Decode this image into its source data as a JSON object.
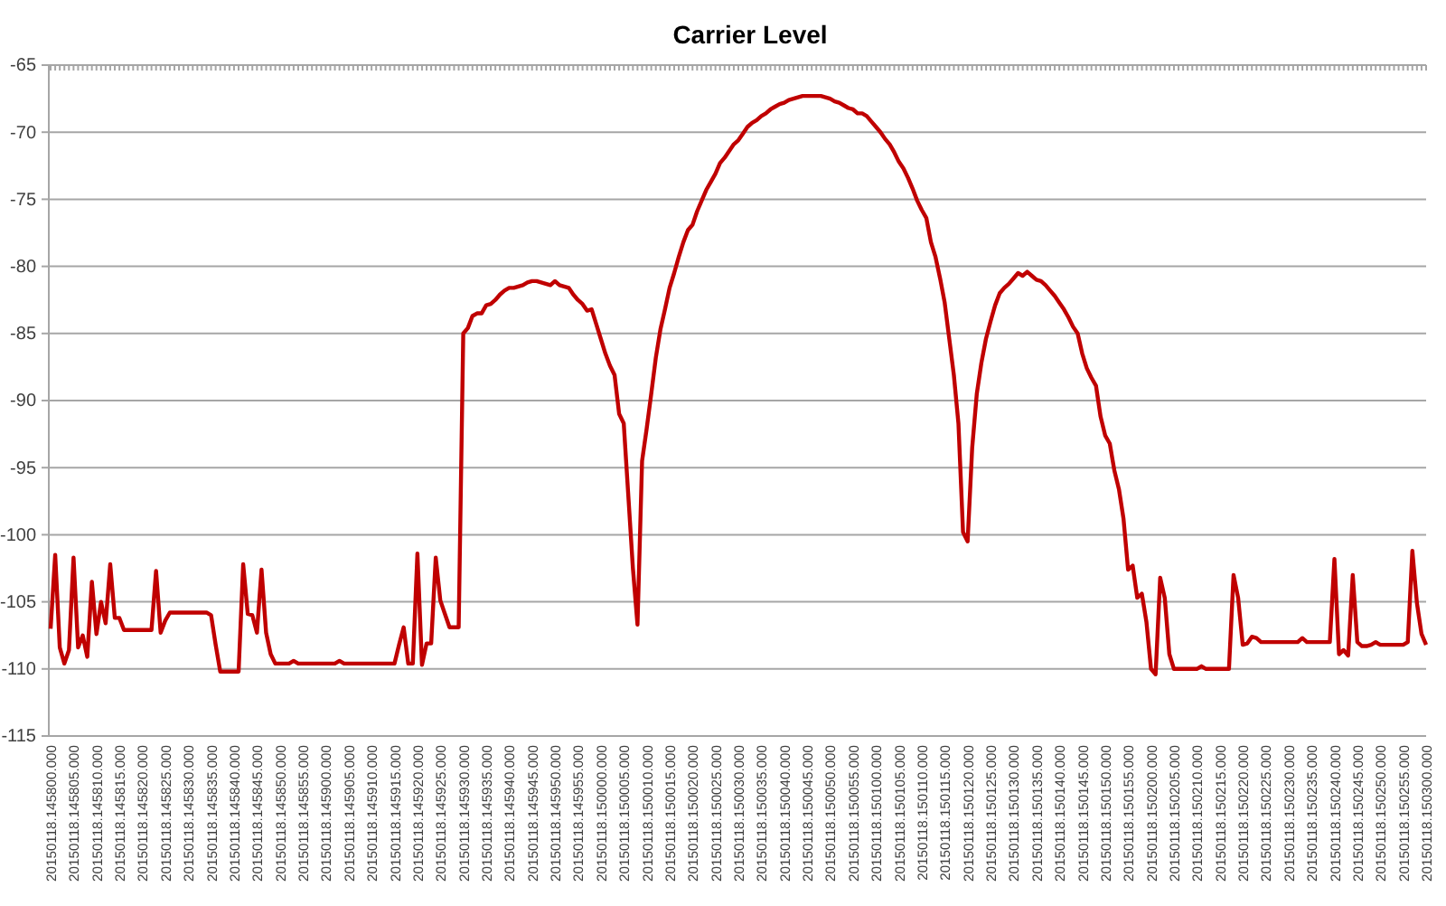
{
  "chart_data": {
    "type": "line",
    "title": "Carrier Level",
    "categories": [
      "20150118.145800.000",
      null,
      null,
      null,
      null,
      "20150118.145805.000",
      null,
      null,
      null,
      null,
      "20150118.145810.000",
      null,
      null,
      null,
      null,
      "20150118.145815.000",
      null,
      null,
      null,
      null,
      "20150118.145820.000",
      null,
      null,
      null,
      null,
      "20150118.145825.000",
      null,
      null,
      null,
      null,
      "20150118.145830.000",
      null,
      null,
      null,
      null,
      "20150118.145835.000",
      null,
      null,
      null,
      null,
      "20150118.145840.000",
      null,
      null,
      null,
      null,
      "20150118.145845.000",
      null,
      null,
      null,
      null,
      "20150118.145850.000",
      null,
      null,
      null,
      null,
      "20150118.145855.000",
      null,
      null,
      null,
      null,
      "20150118.145900.000",
      null,
      null,
      null,
      null,
      "20150118.145905.000",
      null,
      null,
      null,
      null,
      "20150118.145910.000",
      null,
      null,
      null,
      null,
      "20150118.145915.000",
      null,
      null,
      null,
      null,
      "20150118.145920.000",
      null,
      null,
      null,
      null,
      "20150118.145925.000",
      null,
      null,
      null,
      null,
      "20150118.145930.000",
      null,
      null,
      null,
      null,
      "20150118.145935.000",
      null,
      null,
      null,
      null,
      "20150118.145940.000",
      null,
      null,
      null,
      null,
      "20150118.145945.000",
      null,
      null,
      null,
      null,
      "20150118.145950.000",
      null,
      null,
      null,
      null,
      "20150118.145955.000",
      null,
      null,
      null,
      null,
      "20150118.150000.000",
      null,
      null,
      null,
      null,
      "20150118.150005.000",
      null,
      null,
      null,
      null,
      "20150118.150010.000",
      null,
      null,
      null,
      null,
      "20150118.150015.000",
      null,
      null,
      null,
      null,
      "20150118.150020.000",
      null,
      null,
      null,
      null,
      "20150118.150025.000",
      null,
      null,
      null,
      null,
      "20150118.150030.000",
      null,
      null,
      null,
      null,
      "20150118.150035.000",
      null,
      null,
      null,
      null,
      "20150118.150040.000",
      null,
      null,
      null,
      null,
      "20150118.150045.000",
      null,
      null,
      null,
      null,
      "20150118.150050.000",
      null,
      null,
      null,
      null,
      "20150118.150055.000",
      null,
      null,
      null,
      null,
      "20150118.150100.000",
      null,
      null,
      null,
      null,
      "20150118.150105.000",
      null,
      null,
      null,
      null,
      "20150118.150110.000",
      null,
      null,
      null,
      null,
      "20150118.150115.000",
      null,
      null,
      null,
      null,
      "20150118.150120.000",
      null,
      null,
      null,
      null,
      "20150118.150125.000",
      null,
      null,
      null,
      null,
      "20150118.150130.000",
      null,
      null,
      null,
      null,
      "20150118.150135.000",
      null,
      null,
      null,
      null,
      "20150118.150140.000",
      null,
      null,
      null,
      null,
      "20150118.150145.000",
      null,
      null,
      null,
      null,
      "20150118.150150.000",
      null,
      null,
      null,
      null,
      "20150118.150155.000",
      null,
      null,
      null,
      null,
      "20150118.150200.000",
      null,
      null,
      null,
      null,
      "20150118.150205.000",
      null,
      null,
      null,
      null,
      "20150118.150210.000",
      null,
      null,
      null,
      null,
      "20150118.150215.000",
      null,
      null,
      null,
      null,
      "20150118.150220.000",
      null,
      null,
      null,
      null,
      "20150118.150225.000",
      null,
      null,
      null,
      null,
      "20150118.150230.000",
      null,
      null,
      null,
      null,
      "20150118.150235.000",
      null,
      null,
      null,
      null,
      "20150118.150240.000",
      null,
      null,
      null,
      null,
      "20150118.150245.000",
      null,
      null,
      null,
      null,
      "20150118.150250.000",
      null,
      null,
      null,
      null,
      "20150118.150255.000",
      null,
      null,
      null,
      null,
      "20150118.150300.000"
    ],
    "series": [
      {
        "color": "#c00000",
        "values": [
          -107.0,
          -101.5,
          -108.4,
          -109.6,
          -108.6,
          -101.7,
          -108.4,
          -107.5,
          -109.1,
          -103.5,
          -107.4,
          -105.0,
          -106.6,
          -102.2,
          -106.2,
          -106.2,
          -107.1,
          -107.1,
          -107.1,
          -107.1,
          -107.1,
          -107.1,
          -107.1,
          -102.7,
          -107.3,
          -106.4,
          -105.8,
          -105.8,
          -105.8,
          -105.8,
          -105.8,
          -105.8,
          -105.8,
          -105.8,
          -105.8,
          -106.0,
          -108.2,
          -110.2,
          -110.2,
          -110.2,
          -110.2,
          -110.2,
          -102.2,
          -105.9,
          -106.0,
          -107.3,
          -102.6,
          -107.3,
          -108.9,
          -109.6,
          -109.6,
          -109.6,
          -109.6,
          -109.4,
          -109.6,
          -109.6,
          -109.6,
          -109.6,
          -109.6,
          -109.6,
          -109.6,
          -109.6,
          -109.6,
          -109.4,
          -109.6,
          -109.6,
          -109.6,
          -109.6,
          -109.6,
          -109.6,
          -109.6,
          -109.6,
          -109.6,
          -109.6,
          -109.6,
          -109.6,
          -108.2,
          -106.9,
          -109.6,
          -109.6,
          -101.4,
          -109.7,
          -108.1,
          -108.1,
          -101.7,
          -104.9,
          -105.9,
          -106.9,
          -106.9,
          -106.9,
          -85.0,
          -84.6,
          -83.7,
          -83.5,
          -83.5,
          -82.9,
          -82.8,
          -82.5,
          -82.1,
          -81.8,
          -81.6,
          -81.6,
          -81.5,
          -81.4,
          -81.2,
          -81.1,
          -81.1,
          -81.2,
          -81.3,
          -81.4,
          -81.1,
          -81.4,
          -81.5,
          -81.6,
          -82.1,
          -82.5,
          -82.8,
          -83.3,
          -83.2,
          -84.3,
          -85.4,
          -86.5,
          -87.4,
          -88.1,
          -91.0,
          -91.7,
          -97.1,
          -102.5,
          -106.7,
          -94.5,
          -92.1,
          -89.5,
          -86.8,
          -84.7,
          -83.2,
          -81.6,
          -80.5,
          -79.3,
          -78.2,
          -77.3,
          -76.9,
          -75.9,
          -75.1,
          -74.3,
          -73.7,
          -73.1,
          -72.3,
          -71.9,
          -71.4,
          -70.9,
          -70.6,
          -70.1,
          -69.6,
          -69.3,
          -69.1,
          -68.8,
          -68.6,
          -68.3,
          -68.1,
          -67.9,
          -67.8,
          -67.6,
          -67.5,
          -67.4,
          -67.3,
          -67.3,
          -67.3,
          -67.3,
          -67.3,
          -67.4,
          -67.5,
          -67.7,
          -67.8,
          -68.0,
          -68.2,
          -68.3,
          -68.6,
          -68.6,
          -68.8,
          -69.2,
          -69.6,
          -70.0,
          -70.5,
          -70.9,
          -71.5,
          -72.2,
          -72.7,
          -73.4,
          -74.2,
          -75.1,
          -75.8,
          -76.4,
          -78.2,
          -79.3,
          -80.9,
          -82.7,
          -85.4,
          -88.1,
          -91.7,
          -99.8,
          -100.5,
          -93.5,
          -89.5,
          -87.2,
          -85.4,
          -84.1,
          -82.9,
          -82.0,
          -81.6,
          -81.3,
          -80.9,
          -80.5,
          -80.7,
          -80.4,
          -80.7,
          -81.0,
          -81.1,
          -81.4,
          -81.8,
          -82.2,
          -82.7,
          -83.2,
          -83.8,
          -84.5,
          -85.0,
          -86.5,
          -87.6,
          -88.3,
          -88.9,
          -91.2,
          -92.6,
          -93.2,
          -95.2,
          -96.6,
          -98.8,
          -102.6,
          -102.3,
          -104.7,
          -104.4,
          -106.5,
          -110.0,
          -110.4,
          -103.2,
          -104.7,
          -108.9,
          -110.0,
          -110.0,
          -110.0,
          -110.0,
          -110.0,
          -110.0,
          -109.8,
          -110.0,
          -110.0,
          -110.0,
          -110.0,
          -110.0,
          -110.0,
          -103.0,
          -104.7,
          -108.2,
          -108.1,
          -107.6,
          -107.7,
          -108.0,
          -108.0,
          -108.0,
          -108.0,
          -108.0,
          -108.0,
          -108.0,
          -108.0,
          -108.0,
          -107.7,
          -108.0,
          -108.0,
          -108.0,
          -108.0,
          -108.0,
          -108.0,
          -101.8,
          -108.9,
          -108.6,
          -109.0,
          -103.0,
          -108.0,
          -108.3,
          -108.3,
          -108.2,
          -108.0,
          -108.2,
          -108.2,
          -108.2,
          -108.2,
          -108.2,
          -108.2,
          -108.0,
          -101.2,
          -105.1,
          -107.4,
          -108.2
        ]
      }
    ],
    "ylim": [
      -115,
      -65
    ],
    "yticks": [
      -115,
      -110,
      -105,
      -100,
      -95,
      -90,
      -85,
      -80,
      -75,
      -70,
      -65
    ],
    "grid": "y",
    "marker": "none",
    "line_style": "solid"
  }
}
